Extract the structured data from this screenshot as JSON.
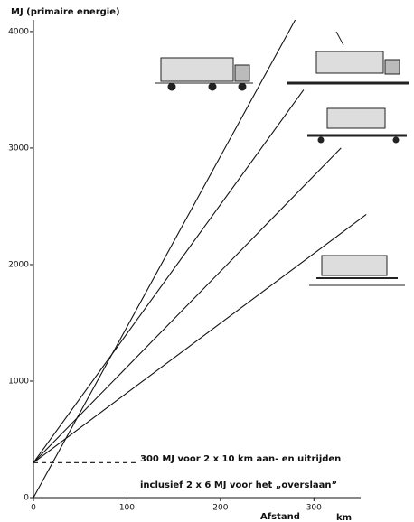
{
  "chart_data": {
    "type": "line",
    "title": "MJ (primaire energie)",
    "x_label": "Afstand",
    "x_unit": "km",
    "annotations": [
      "300 MJ voor 2 x 10 km aan- en uitrijden",
      "inclusief 2 x 6 MJ voor het „overslaan”"
    ],
    "series": [
      {
        "color": "#111111",
        "x": [
          0,
          280
        ],
        "values": [
          0,
          4100
        ]
      },
      {
        "color": "#111111",
        "x": [
          0,
          289
        ],
        "values": [
          300,
          3500
        ]
      },
      {
        "color": "#111111",
        "x": [
          0,
          329
        ],
        "values": [
          300,
          3000
        ]
      },
      {
        "color": "#111111",
        "x": [
          0,
          356
        ],
        "values": [
          300,
          2430
        ]
      },
      {
        "color": "#111111",
        "x": [
          0,
          110
        ],
        "values": [
          300,
          300
        ],
        "dashed": true
      }
    ],
    "xlim": [
      0,
      350
    ],
    "xticks": [
      0,
      100,
      200,
      300
    ],
    "ylim": [
      0,
      4100
    ],
    "yticks": [
      0,
      1000,
      2000,
      3000,
      4000
    ],
    "grid": false
  }
}
